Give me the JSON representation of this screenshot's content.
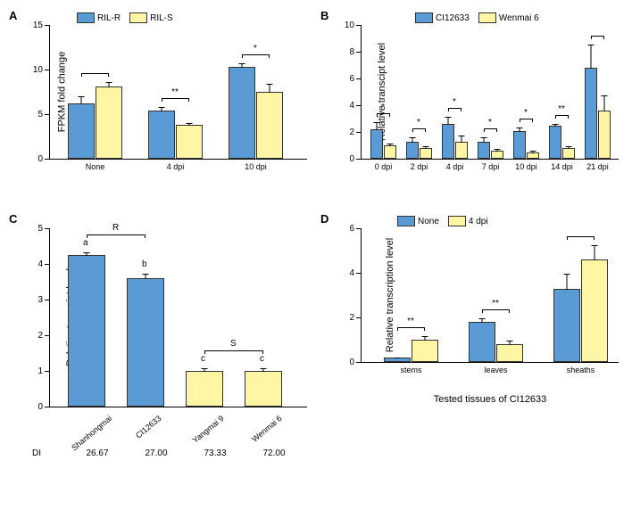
{
  "colors": {
    "blue": "#5b9bd5",
    "yellow": "#fef5a5",
    "border": "#333333",
    "bg": "#ffffff"
  },
  "panelA": {
    "label": "A",
    "ylabel": "FPKM fold change",
    "ylim": [
      0,
      15
    ],
    "ytick_step": 5,
    "legend": [
      {
        "label": "RIL-R",
        "color": "blue"
      },
      {
        "label": "RIL-S",
        "color": "yellow"
      }
    ],
    "categories": [
      "None",
      "4 dpi",
      "10 dpi"
    ],
    "series": [
      {
        "color": "blue",
        "values": [
          6.2,
          5.4,
          10.3
        ],
        "err": [
          0.9,
          0.5,
          0.5
        ]
      },
      {
        "color": "yellow",
        "values": [
          8.1,
          3.8,
          7.5
        ],
        "err": [
          0.6,
          0.3,
          1.0
        ]
      }
    ],
    "sig": [
      "",
      "**",
      "*"
    ]
  },
  "panelB": {
    "label": "B",
    "ylabel": "Relative transcipt level",
    "ylim": [
      0,
      10
    ],
    "ytick_step": 2,
    "legend": [
      {
        "label": "CI12633",
        "color": "blue"
      },
      {
        "label": "Wenmai 6",
        "color": "yellow"
      }
    ],
    "categories": [
      "0 dpi",
      "2 dpi",
      "4 dpi",
      "7 dpi",
      "10 dpi",
      "14 dpi",
      "21 dpi"
    ],
    "series": [
      {
        "color": "blue",
        "values": [
          2.2,
          1.3,
          2.6,
          1.3,
          2.1,
          2.5,
          6.8
        ],
        "err": [
          0.6,
          0.4,
          0.6,
          0.4,
          0.3,
          0.2,
          1.8
        ]
      },
      {
        "color": "yellow",
        "values": [
          1.0,
          0.8,
          1.3,
          0.6,
          0.5,
          0.8,
          3.6
        ],
        "err": [
          0.2,
          0.2,
          0.5,
          0.2,
          0.2,
          0.2,
          1.2
        ]
      }
    ],
    "sig": [
      "*",
      "*",
      "*",
      "*",
      "*",
      "**",
      ""
    ]
  },
  "panelC": {
    "label": "C",
    "ylabel": "Relative transcipt level",
    "ylim": [
      0,
      5
    ],
    "ytick_step": 1,
    "categories": [
      "Shanhongmai",
      "CI12633",
      "Yangmai 9",
      "Wenmai 6"
    ],
    "values": [
      4.25,
      3.6,
      1.0,
      1.0
    ],
    "err": [
      0.1,
      0.15,
      0.1,
      0.1
    ],
    "colors": [
      "blue",
      "blue",
      "yellow",
      "yellow"
    ],
    "letters": [
      "a",
      "b",
      "c",
      "c"
    ],
    "groups": {
      "R": "R",
      "S": "S"
    },
    "di_label": "DI",
    "di": [
      "26.67",
      "27.00",
      "73.33",
      "72.00"
    ]
  },
  "panelD": {
    "label": "D",
    "ylabel": "Relative transcription level",
    "xlabel": "Tested tissues of CI12633",
    "ylim": [
      0,
      6
    ],
    "ytick_step": 2,
    "legend": [
      {
        "label": "None",
        "color": "blue"
      },
      {
        "label": "4  dpi",
        "color": "yellow"
      }
    ],
    "categories": [
      "stems",
      "leaves",
      "sheaths"
    ],
    "series": [
      {
        "color": "blue",
        "values": [
          0.2,
          1.8,
          3.3
        ],
        "err": [
          0.05,
          0.2,
          0.7
        ]
      },
      {
        "color": "yellow",
        "values": [
          1.0,
          0.8,
          4.6
        ],
        "err": [
          0.2,
          0.2,
          0.7
        ]
      }
    ],
    "sig": [
      "**",
      "**",
      ""
    ]
  }
}
